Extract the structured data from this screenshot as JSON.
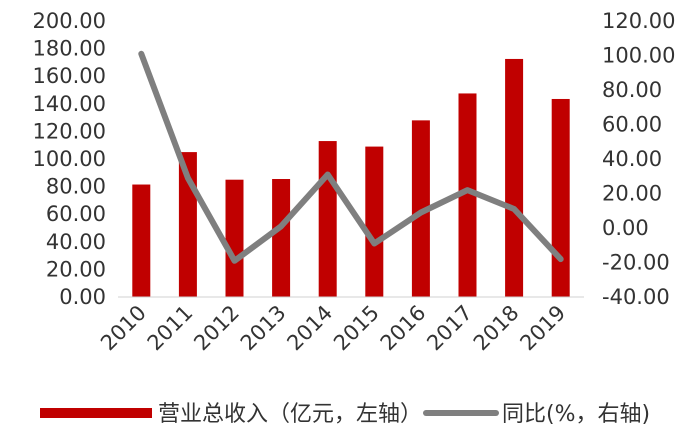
{
  "chart_data": {
    "type": "bar",
    "categories": [
      "2010",
      "2011",
      "2012",
      "2013",
      "2014",
      "2015",
      "2016",
      "2017",
      "2018",
      "2019"
    ],
    "series": [
      {
        "name": "营业总收入（亿元，左轴）",
        "type": "bar",
        "axis": "left",
        "color": "#C00000",
        "values": [
          81.5,
          105.0,
          85.0,
          85.5,
          113.0,
          109.0,
          128.0,
          147.5,
          172.5,
          143.5
        ]
      },
      {
        "name": "同比(%，右轴)",
        "type": "line",
        "axis": "right",
        "color": "#7F7F7F",
        "values": [
          101.0,
          29.0,
          -19.0,
          1.0,
          31.0,
          -9.0,
          9.0,
          22.0,
          11.0,
          -18.0
        ]
      }
    ],
    "y_left": {
      "min": 0,
      "max": 200,
      "step": 20,
      "ticks": [
        "0.00",
        "20.00",
        "40.00",
        "60.00",
        "80.00",
        "100.00",
        "120.00",
        "140.00",
        "160.00",
        "180.00",
        "200.00"
      ]
    },
    "y_right": {
      "min": -40,
      "max": 120,
      "step": 20,
      "ticks": [
        "-40.00",
        "-20.00",
        "0.00",
        "20.00",
        "40.00",
        "60.00",
        "80.00",
        "100.00",
        "120.00"
      ]
    },
    "grid": false,
    "legend_position": "bottom"
  }
}
